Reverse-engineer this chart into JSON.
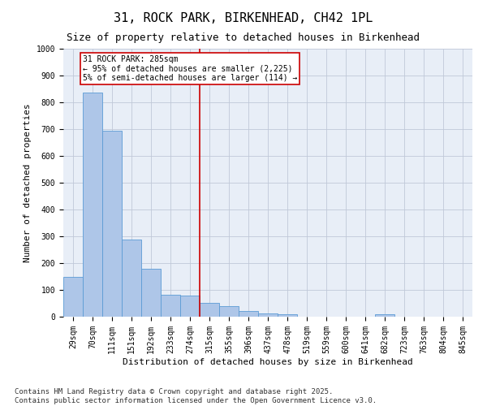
{
  "title": "31, ROCK PARK, BIRKENHEAD, CH42 1PL",
  "subtitle": "Size of property relative to detached houses in Birkenhead",
  "xlabel": "Distribution of detached houses by size in Birkenhead",
  "ylabel": "Number of detached properties",
  "categories": [
    "29sqm",
    "70sqm",
    "111sqm",
    "151sqm",
    "192sqm",
    "233sqm",
    "274sqm",
    "315sqm",
    "355sqm",
    "396sqm",
    "437sqm",
    "478sqm",
    "519sqm",
    "559sqm",
    "600sqm",
    "641sqm",
    "682sqm",
    "723sqm",
    "763sqm",
    "804sqm",
    "845sqm"
  ],
  "values": [
    150,
    835,
    695,
    287,
    180,
    82,
    80,
    52,
    40,
    20,
    13,
    10,
    0,
    0,
    0,
    0,
    10,
    0,
    0,
    0,
    0
  ],
  "bar_color": "#aec6e8",
  "bar_edge_color": "#5b9bd5",
  "vline_x": 6.5,
  "vline_color": "#cc0000",
  "annotation_text": "31 ROCK PARK: 285sqm\n← 95% of detached houses are smaller (2,225)\n5% of semi-detached houses are larger (114) →",
  "ylim": [
    0,
    1000
  ],
  "yticks": [
    0,
    100,
    200,
    300,
    400,
    500,
    600,
    700,
    800,
    900,
    1000
  ],
  "background_color": "#ffffff",
  "plot_bg_color": "#e8eef7",
  "grid_color": "#c0c8d8",
  "footnote": "Contains HM Land Registry data © Crown copyright and database right 2025.\nContains public sector information licensed under the Open Government Licence v3.0.",
  "title_fontsize": 11,
  "subtitle_fontsize": 9,
  "axis_label_fontsize": 8,
  "tick_fontsize": 7,
  "annotation_fontsize": 7,
  "footnote_fontsize": 6.5
}
